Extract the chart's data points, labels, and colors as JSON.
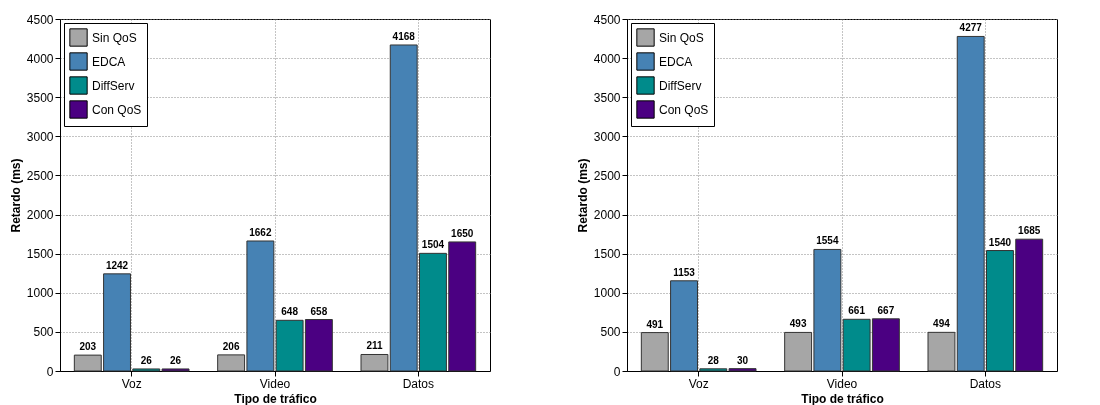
{
  "chart_data": [
    {
      "type": "bar",
      "xlabel": "Tipo de tráfico",
      "ylabel": "Retardo (ms)",
      "categories": [
        "Voz",
        "Video",
        "Datos"
      ],
      "series": [
        {
          "name": "Sin QoS",
          "color": "#a6a6a6",
          "values": [
            203,
            206,
            211
          ]
        },
        {
          "name": "EDCA",
          "color": "#4682b4",
          "values": [
            1242,
            1662,
            4168
          ]
        },
        {
          "name": "DiffServ",
          "color": "#008b8b",
          "values": [
            26,
            648,
            1504
          ]
        },
        {
          "name": "Con QoS",
          "color": "#4b0082",
          "values": [
            26,
            658,
            1650
          ]
        }
      ],
      "ylim": [
        0,
        4500
      ],
      "yticks": [
        0,
        500,
        1000,
        1500,
        2000,
        2500,
        3000,
        3500,
        4000,
        4500
      ],
      "grid": true,
      "legend": "top left",
      "data_labels": true
    },
    {
      "type": "bar",
      "xlabel": "Tipo de tráfico",
      "ylabel": "Retardo (ms)",
      "categories": [
        "Voz",
        "Video",
        "Datos"
      ],
      "series": [
        {
          "name": "Sin QoS",
          "color": "#a6a6a6",
          "values": [
            491,
            493,
            494
          ]
        },
        {
          "name": "EDCA",
          "color": "#4682b4",
          "values": [
            1153,
            1554,
            4277
          ]
        },
        {
          "name": "DiffServ",
          "color": "#008b8b",
          "values": [
            28,
            661,
            1540
          ]
        },
        {
          "name": "Con QoS",
          "color": "#4b0082",
          "values": [
            30,
            667,
            1685
          ]
        }
      ],
      "ylim": [
        0,
        4500
      ],
      "yticks": [
        0,
        500,
        1000,
        1500,
        2000,
        2500,
        3000,
        3500,
        4000,
        4500
      ],
      "grid": true,
      "legend": "top left",
      "data_labels": true
    }
  ]
}
